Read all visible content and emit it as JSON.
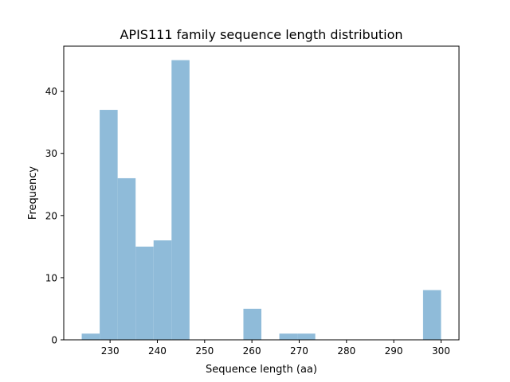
{
  "chart_data": {
    "type": "bar",
    "title": "APIS111 family sequence length distribution",
    "xlabel": "Sequence length (aa)",
    "ylabel": "Frequency",
    "bin_edges": [
      224,
      227.8,
      231.6,
      235.4,
      239.2,
      243,
      246.8,
      250.6,
      254.4,
      258.2,
      262,
      265.8,
      269.6,
      273.4,
      277.2,
      281,
      284.8,
      288.6,
      292.4,
      296.2,
      300
    ],
    "values": [
      1,
      37,
      26,
      15,
      16,
      45,
      0,
      0,
      0,
      5,
      0,
      1,
      1,
      0,
      0,
      0,
      0,
      0,
      0,
      8
    ],
    "xlim": [
      220.2,
      303.8
    ],
    "ylim": [
      0,
      47.25
    ],
    "xticks": [
      230,
      240,
      250,
      260,
      270,
      280,
      290,
      300
    ],
    "yticks": [
      0,
      10,
      20,
      30,
      40
    ],
    "grid": false,
    "bar_color": "#8fbbd9"
  }
}
